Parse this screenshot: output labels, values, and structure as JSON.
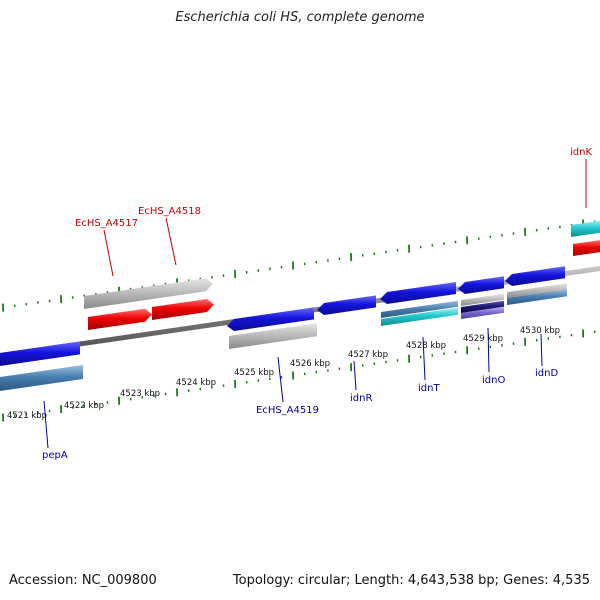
{
  "title": "Escherichia coli HS, complete genome",
  "footer": {
    "accession": "Accession: NC_009800",
    "stats": "Topology: circular; Length: 4,643,538 bp; Genes: 4,535"
  },
  "colors": {
    "backbone": "#8a8a8a",
    "tick": "#1a7a1a",
    "label_red": "#cc0000",
    "label_blue": "#0000aa",
    "gene_blue": "#1414dc",
    "gene_red": "#ee0000",
    "gene_cyan": "#22c8cc",
    "gene_gray": "#b8b8b8",
    "gene_steel": "#4a7fb0",
    "gene_navy": "#1a1a7a",
    "gene_lavender": "#7a6ad0"
  },
  "scale_labels": [
    "4521 kbp",
    "4522 kbp",
    "4523 kbp",
    "4524 kbp",
    "4525 kbp",
    "4526 kbp",
    "4527 kbp",
    "4528 kbp",
    "4529 kbp",
    "4530 kbp"
  ],
  "gene_labels": [
    {
      "text": "idnK",
      "color": "red"
    },
    {
      "text": "EcHS_A4518",
      "color": "red"
    },
    {
      "text": "EcHS_A4517",
      "color": "red"
    },
    {
      "text": "pepA",
      "color": "blue"
    },
    {
      "text": "EcHS_A4519",
      "color": "blue"
    },
    {
      "text": "idnR",
      "color": "blue"
    },
    {
      "text": "idnT",
      "color": "blue"
    },
    {
      "text": "idnO",
      "color": "blue"
    },
    {
      "text": "idnD",
      "color": "blue"
    }
  ]
}
